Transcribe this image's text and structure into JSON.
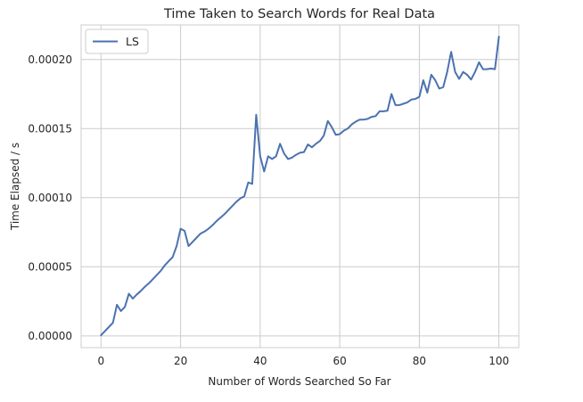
{
  "chart_data": {
    "type": "line",
    "title": "Time Taken to Search Words for Real Data",
    "xlabel": "Number of Words Searched So Far",
    "ylabel": "Time Elapsed / s",
    "xlim": [
      -5,
      105
    ],
    "ylim": [
      -8.5e-06,
      0.000225
    ],
    "xticks": [
      0,
      20,
      40,
      60,
      80,
      100
    ],
    "xtick_labels": [
      "0",
      "20",
      "40",
      "60",
      "80",
      "100"
    ],
    "yticks": [
      0,
      5e-05,
      0.0001,
      0.00015,
      0.0002
    ],
    "ytick_labels": [
      "0.00000",
      "0.00005",
      "0.00010",
      "0.00015",
      "0.00020"
    ],
    "grid": true,
    "legend": "upper-left",
    "series": [
      {
        "name": "LS",
        "color": "#4c72b0",
        "x": [
          0,
          1,
          2,
          3,
          4,
          5,
          6,
          7,
          8,
          9,
          10,
          11,
          12,
          13,
          14,
          15,
          16,
          17,
          18,
          19,
          20,
          21,
          22,
          23,
          24,
          25,
          26,
          27,
          28,
          29,
          30,
          31,
          32,
          33,
          34,
          35,
          36,
          37,
          38,
          39,
          40,
          41,
          42,
          43,
          44,
          45,
          46,
          47,
          48,
          49,
          50,
          51,
          52,
          53,
          54,
          55,
          56,
          57,
          58,
          59,
          60,
          61,
          62,
          63,
          64,
          65,
          66,
          67,
          68,
          69,
          70,
          71,
          72,
          73,
          74,
          75,
          76,
          77,
          78,
          79,
          80,
          81,
          82,
          83,
          84,
          85,
          86,
          87,
          88,
          89,
          90,
          91,
          92,
          93,
          94,
          95,
          96,
          97,
          98,
          99,
          100
        ],
        "y": [
          5e-07,
          3.5e-06,
          6.5e-06,
          9.5e-06,
          2.25e-05,
          1.8e-05,
          2.1e-05,
          3.05e-05,
          2.7e-05,
          3e-05,
          3.25e-05,
          3.55e-05,
          3.8e-05,
          4.1e-05,
          4.4e-05,
          4.7e-05,
          5.1e-05,
          5.4e-05,
          5.7e-05,
          6.5e-05,
          7.75e-05,
          7.6e-05,
          6.5e-05,
          6.8e-05,
          7.1e-05,
          7.4e-05,
          7.55e-05,
          7.75e-05,
          8e-05,
          8.3e-05,
          8.55e-05,
          8.8e-05,
          9.1e-05,
          9.4e-05,
          9.7e-05,
          9.95e-05,
          0.000101,
          0.000111,
          0.00011,
          0.00016,
          0.00013,
          0.000119,
          0.00013,
          0.000128,
          0.00013,
          0.000139,
          0.000132,
          0.000128,
          0.000129,
          0.000131,
          0.0001325,
          0.000133,
          0.0001385,
          0.0001365,
          0.000139,
          0.000141,
          0.000145,
          0.0001555,
          0.000151,
          0.0001455,
          0.000146,
          0.0001485,
          0.00015,
          0.000153,
          0.000155,
          0.0001565,
          0.0001565,
          0.000157,
          0.0001585,
          0.000159,
          0.0001625,
          0.0001625,
          0.000163,
          0.000175,
          0.000167,
          0.000167,
          0.000168,
          0.000169,
          0.000171,
          0.0001715,
          0.000173,
          0.000185,
          0.000176,
          0.000189,
          0.000185,
          0.000179,
          0.00018,
          0.000191,
          0.0002055,
          0.000191,
          0.000186,
          0.000191,
          0.000189,
          0.0001855,
          0.000191,
          0.000198,
          0.000193,
          0.000193,
          0.0001935,
          0.000193,
          0.0002165
        ]
      }
    ]
  }
}
